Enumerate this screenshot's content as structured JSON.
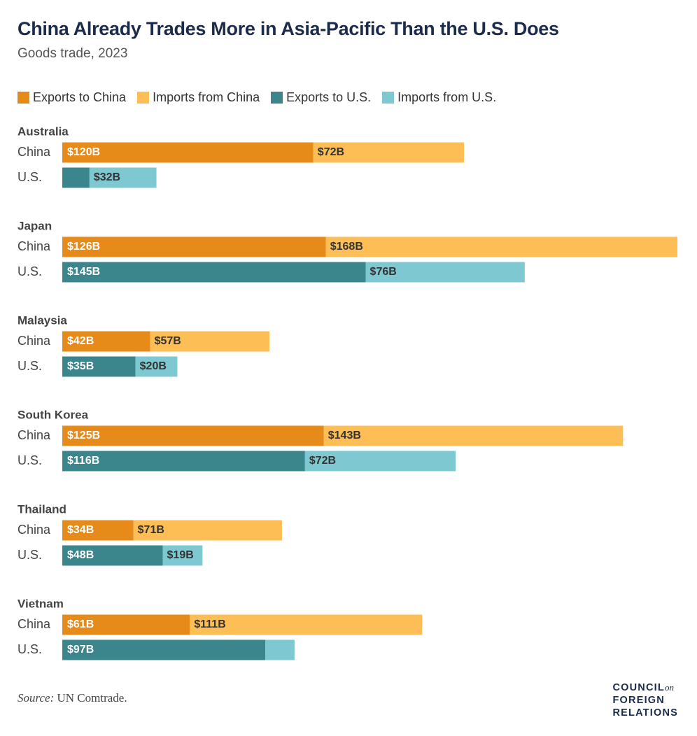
{
  "title": "China Already Trades More in Asia-Pacific Than the U.S. Does",
  "subtitle": "Goods trade, 2023",
  "source": {
    "label": "Source:",
    "text": "UN Comtrade."
  },
  "logo": {
    "line1": "COUNCIL",
    "on": "on",
    "line2": "FOREIGN",
    "line3": "RELATIONS"
  },
  "colors": {
    "exports_china": "#e68a1a",
    "imports_china": "#fdbe55",
    "exports_us": "#3a868c",
    "imports_us": "#7dc8d1"
  },
  "chart_data": {
    "type": "bar",
    "orientation": "horizontal",
    "stacked": true,
    "unit": "$B",
    "legend": [
      {
        "name": "Exports to China",
        "color_key": "exports_china"
      },
      {
        "name": "Imports from China",
        "color_key": "imports_china"
      },
      {
        "name": "Exports to U.S.",
        "color_key": "exports_us"
      },
      {
        "name": "Imports from U.S.",
        "color_key": "imports_us"
      }
    ],
    "row_labels": {
      "china": "China",
      "us": "U.S."
    },
    "countries": [
      {
        "name": "Australia",
        "china": {
          "exports": 120,
          "imports": 72,
          "exports_label": "$120B",
          "imports_label": "$72B"
        },
        "us": {
          "exports": 13,
          "imports": 32,
          "exports_label": "",
          "imports_label": "$32B"
        }
      },
      {
        "name": "Japan",
        "china": {
          "exports": 126,
          "imports": 168,
          "exports_label": "$126B",
          "imports_label": "$168B"
        },
        "us": {
          "exports": 145,
          "imports": 76,
          "exports_label": "$145B",
          "imports_label": "$76B"
        }
      },
      {
        "name": "Malaysia",
        "china": {
          "exports": 42,
          "imports": 57,
          "exports_label": "$42B",
          "imports_label": "$57B"
        },
        "us": {
          "exports": 35,
          "imports": 20,
          "exports_label": "$35B",
          "imports_label": "$20B"
        }
      },
      {
        "name": "South Korea",
        "china": {
          "exports": 125,
          "imports": 143,
          "exports_label": "$125B",
          "imports_label": "$143B"
        },
        "us": {
          "exports": 116,
          "imports": 72,
          "exports_label": "$116B",
          "imports_label": "$72B"
        }
      },
      {
        "name": "Thailand",
        "china": {
          "exports": 34,
          "imports": 71,
          "exports_label": "$34B",
          "imports_label": "$71B"
        },
        "us": {
          "exports": 48,
          "imports": 19,
          "exports_label": "$48B",
          "imports_label": "$19B"
        }
      },
      {
        "name": "Vietnam",
        "china": {
          "exports": 61,
          "imports": 111,
          "exports_label": "$61B",
          "imports_label": "$111B"
        },
        "us": {
          "exports": 97,
          "imports": 14,
          "exports_label": "$97B",
          "imports_label": ""
        }
      }
    ]
  }
}
